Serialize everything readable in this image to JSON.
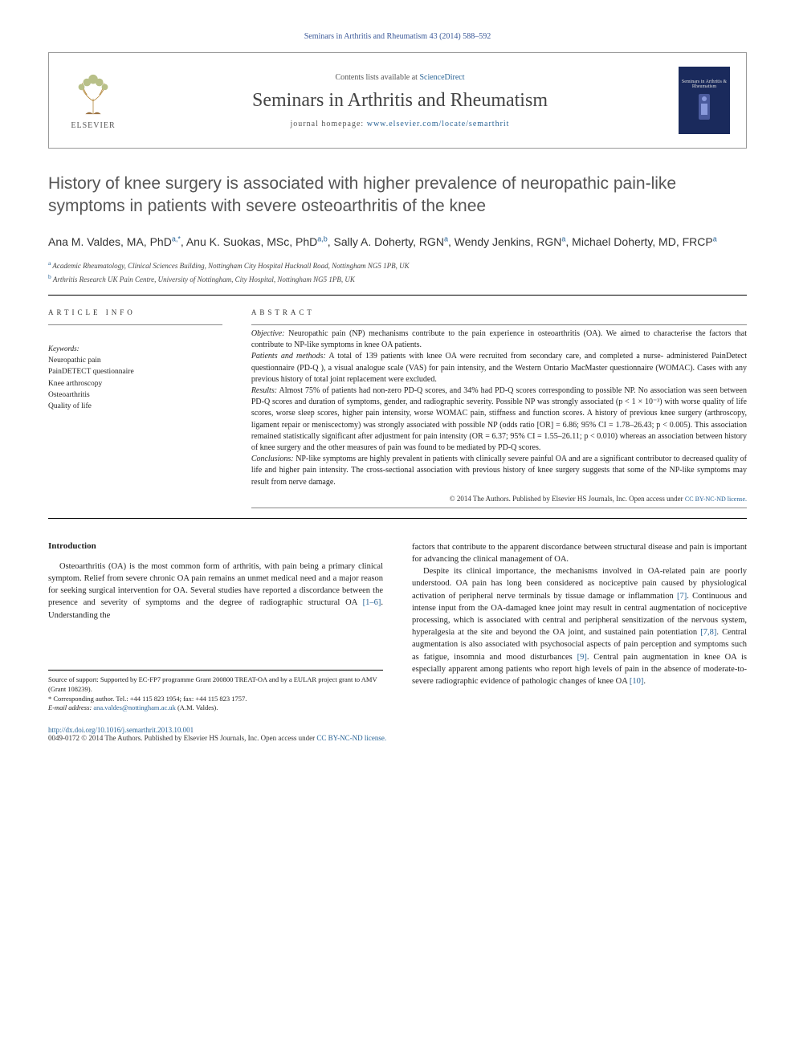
{
  "header": {
    "citation": "Seminars in Arthritis and Rheumatism 43 (2014) 588–592",
    "contents_prefix": "Contents lists available at ",
    "contents_link": "ScienceDirect",
    "journal_name": "Seminars in Arthritis and Rheumatism",
    "homepage_prefix": "journal homepage: ",
    "homepage_url": "www.elsevier.com/locate/semarthrit",
    "elsevier_label": "ELSEVIER",
    "mini_journal_label": "Seminars in Arthritis & Rheumatism"
  },
  "article": {
    "title": "History of knee surgery is associated with higher prevalence of neuropathic pain-like symptoms in patients with severe osteoarthritis of the knee",
    "authors_html": "Ana M. Valdes, MA, PhD<sup>a,*</sup>, Anu K. Suokas, MSc, PhD<sup>a,b</sup>, Sally A. Doherty, RGN<sup>a</sup>, Wendy Jenkins, RGN<sup>a</sup>, Michael Doherty, MD, FRCP<sup>a</sup>",
    "affiliations": [
      {
        "sup": "a",
        "text": "Academic Rheumatology, Clinical Sciences Building, Nottingham City Hospital Hucknall Road, Nottingham NG5 1PB, UK"
      },
      {
        "sup": "b",
        "text": "Arthritis Research UK Pain Centre, University of Nottingham, City Hospital, Nottingham NG5 1PB, UK"
      }
    ]
  },
  "info": {
    "label": "ARTICLE INFO",
    "keywords_label": "Keywords:",
    "keywords": [
      "Neuropathic pain",
      "PainDETECT questionnaire",
      "Knee arthroscopy",
      "Osteoarthritis",
      "Quality of life"
    ]
  },
  "abstract": {
    "label": "ABSTRACT",
    "sections": [
      {
        "head": "Objective:",
        "text": " Neuropathic pain (NP) mechanisms contribute to the pain experience in osteoarthritis (OA). We aimed to characterise the factors that contribute to NP-like symptoms in knee OA patients."
      },
      {
        "head": "Patients and methods:",
        "text": " A total of 139 patients with knee OA were recruited from secondary care, and completed a nurse- administered PainDetect questionnaire (PD-Q ), a visual analogue scale (VAS) for pain intensity, and the Western Ontario MacMaster questionnaire (WOMAC). Cases with any previous history of total joint replacement were excluded."
      },
      {
        "head": "Results:",
        "text": " Almost 75% of patients had non-zero PD-Q scores, and 34% had PD-Q scores corresponding to possible NP. No association was seen between PD-Q scores and duration of symptoms, gender, and radiographic severity. Possible NP was strongly associated (p < 1 × 10⁻³) with worse quality of life scores, worse sleep scores, higher pain intensity, worse WOMAC pain, stiffness and function scores. A history of previous knee surgery (arthroscopy, ligament repair or meniscectomy) was strongly associated with possible NP (odds ratio [OR] = 6.86; 95% CI = 1.78–26.43; p < 0.005). This association remained statistically significant after adjustment for pain intensity (OR = 6.37; 95% CI = 1.55–26.11; p < 0.010) whereas an association between history of knee surgery and the other measures of pain was found to be mediated by PD-Q scores."
      },
      {
        "head": "Conclusions:",
        "text": " NP-like symptoms are highly prevalent in patients with clinically severe painful OA and are a significant contributor to decreased quality of life and higher pain intensity. The cross-sectional association with previous history of knee surgery suggests that some of the NP-like symptoms may result from nerve damage."
      }
    ],
    "copyright": "© 2014 The Authors. Published by Elsevier HS Journals, Inc. ",
    "license_label": "Open access under ",
    "license_link": "CC BY-NC-ND license."
  },
  "body": {
    "heading": "Introduction",
    "p1_a": "Osteoarthritis (OA) is the most common form of arthritis, with pain being a primary clinical symptom. Relief from severe chronic OA pain remains an unmet medical need and a major reason for seeking surgical intervention for OA. Several studies have reported a discordance between the presence and severity of symptoms and the degree of radiographic structural OA ",
    "p1_ref": "[1–6]",
    "p1_b": ". Understanding the",
    "p2": "factors that contribute to the apparent discordance between structural disease and pain is important for advancing the clinical management of OA.",
    "p3_a": "Despite its clinical importance, the mechanisms involved in OA-related pain are poorly understood. OA pain has long been considered as nociceptive pain caused by physiological activation of peripheral nerve terminals by tissue damage or inflammation ",
    "p3_ref1": "[7]",
    "p3_b": ". Continuous and intense input from the OA-damaged knee joint may result in central augmentation of nociceptive processing, which is associated with central and peripheral sensitization of the nervous system, hyperalgesia at the site and beyond the OA joint, and sustained pain potentiation ",
    "p3_ref2": "[7,8]",
    "p3_c": ". Central augmentation is also associated with psychosocial aspects of pain perception and symptoms such as fatigue, insomnia and mood disturbances ",
    "p3_ref3": "[9]",
    "p3_d": ". Central pain augmentation in knee OA is especially apparent among patients who report high levels of pain in the absence of moderate-to-severe radiographic evidence of pathologic changes of knee OA ",
    "p3_ref4": "[10]",
    "p3_e": "."
  },
  "footnotes": {
    "support": "Source of support: Supported by EC-FP7 programme Grant 200800 TREAT-OA and by a EULAR project grant to AMV (Grant 108239).",
    "corresponding_label": "* Corresponding author. Tel.: ",
    "tel": "+44 115 823 1954",
    "fax_label": "; fax: ",
    "fax": "+44 115 823 1757.",
    "email_label": "E-mail address: ",
    "email": "ana.valdes@nottingham.ac.uk",
    "email_suffix": " (A.M. Valdes)."
  },
  "footer": {
    "doi": "http://dx.doi.org/10.1016/j.semarthrit.2013.10.001",
    "issn_line": "0049-0172 © 2014 The Authors. Published by Elsevier HS Journals, Inc. ",
    "license_label": "Open access under ",
    "license_link": "CC BY-NC-ND license."
  },
  "colors": {
    "link": "#2a6496",
    "text": "#222222",
    "muted": "#555555",
    "rule": "#000000",
    "cover_bg": "#1a2a5c"
  }
}
